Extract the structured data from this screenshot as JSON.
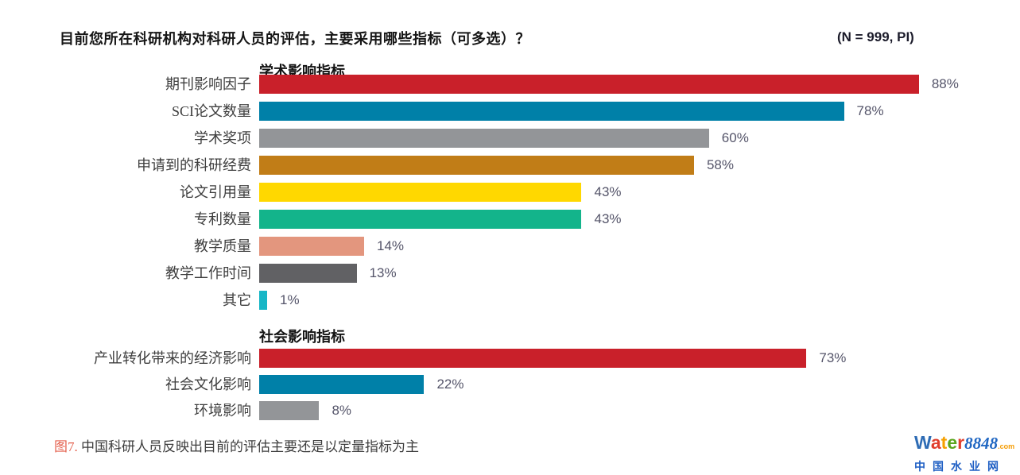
{
  "title": "目前您所在科研机构对科研人员的评估，主要采用哪些指标（可多选）？",
  "sample_label": "(N = 999, PI)",
  "chart_data": {
    "type": "bar",
    "orientation": "horizontal",
    "unit": "percent",
    "xlim": [
      0,
      100
    ],
    "value_labels": "outside-end",
    "grid": false,
    "legend": false,
    "groups": [
      {
        "header": "学术影响指标",
        "categories": [
          "期刊影响因子",
          "SCI论文数量",
          "学术奖项",
          "申请到的科研经费",
          "论文引用量",
          "专利数量",
          "教学质量",
          "教学工作时间",
          "其它"
        ],
        "values": [
          88,
          78,
          60,
          58,
          43,
          43,
          14,
          13,
          1
        ],
        "labels": [
          "88%",
          "78%",
          "60%",
          "58%",
          "43%",
          "43%",
          "14%",
          "13%",
          "1%"
        ],
        "colors": [
          "#c9202a",
          "#0080a8",
          "#939598",
          "#c17d17",
          "#ffd800",
          "#13b48b",
          "#e3967e",
          "#616164",
          "#17b6c6"
        ]
      },
      {
        "header": "社会影响指标",
        "categories": [
          "产业转化带来的经济影响",
          "社会文化影响",
          "环境影响"
        ],
        "values": [
          73,
          22,
          8
        ],
        "labels": [
          "73%",
          "22%",
          "8%"
        ],
        "colors": [
          "#c9202a",
          "#0080a8",
          "#939598"
        ]
      }
    ]
  },
  "caption": {
    "prefix": "图7.",
    "text": " 中国科研人员反映出目前的评估主要还是以定量指标为主"
  },
  "logo": {
    "word_letters": [
      {
        "ch": "W",
        "color": "#2e6cb5"
      },
      {
        "ch": "a",
        "color": "#e03e2d"
      },
      {
        "ch": "t",
        "color": "#f5a000"
      },
      {
        "ch": "e",
        "color": "#5aa51e"
      },
      {
        "ch": "r",
        "color": "#e03e2d"
      }
    ],
    "number": "8848",
    "number_color": "#1f66c2",
    "tld": ".com",
    "tld_color": "#f59b00",
    "subtitle": "中国水业网",
    "subtitle_color": "#1f5fc4"
  }
}
